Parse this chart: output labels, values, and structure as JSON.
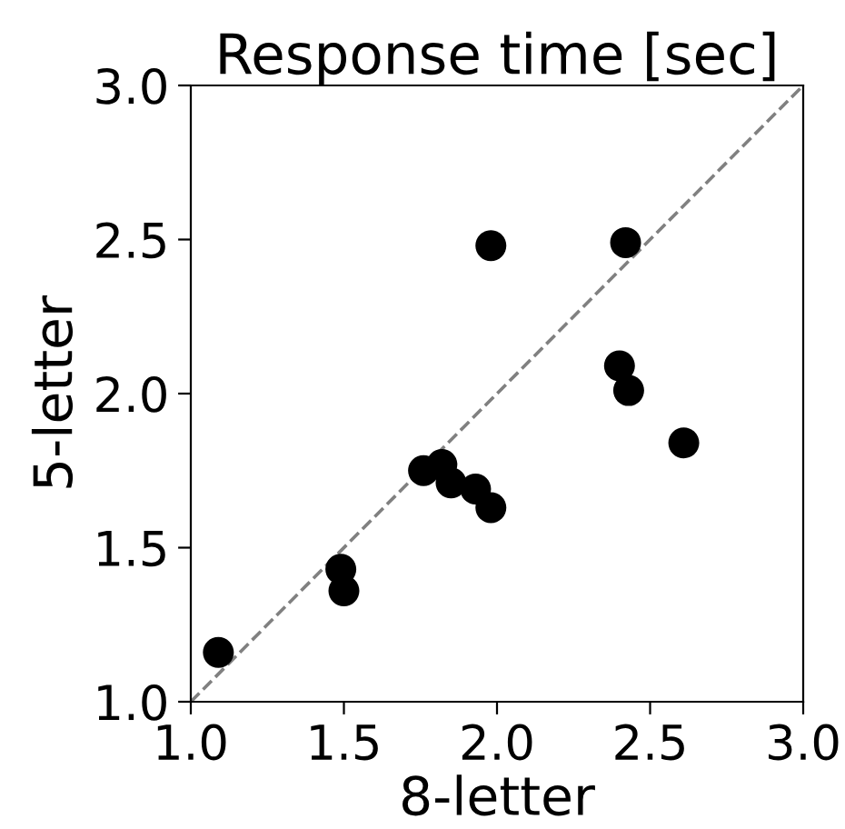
{
  "chart_data": {
    "type": "scatter",
    "title": "Response time [sec]",
    "xlabel": "8-letter",
    "ylabel": "5-letter",
    "xlim": [
      1.0,
      3.0
    ],
    "ylim": [
      1.0,
      3.0
    ],
    "xticks": [
      {
        "value": 1.0,
        "label": "1.0"
      },
      {
        "value": 1.5,
        "label": "1.5"
      },
      {
        "value": 2.0,
        "label": "2.0"
      },
      {
        "value": 2.5,
        "label": "2.5"
      },
      {
        "value": 3.0,
        "label": "3.0"
      }
    ],
    "yticks": [
      {
        "value": 1.0,
        "label": "1.0"
      },
      {
        "value": 1.5,
        "label": "1.5"
      },
      {
        "value": 2.0,
        "label": "2.0"
      },
      {
        "value": 2.5,
        "label": "2.5"
      },
      {
        "value": 3.0,
        "label": "3.0"
      }
    ],
    "grid": false,
    "series": [
      {
        "marker": "circle",
        "color": "#000000",
        "x": [
          1.09,
          1.49,
          1.5,
          1.76,
          1.82,
          1.85,
          1.93,
          1.98,
          1.98,
          2.42,
          2.4,
          2.43,
          2.61
        ],
        "values": [
          1.16,
          1.43,
          1.36,
          1.75,
          1.77,
          1.71,
          1.69,
          1.63,
          2.48,
          2.49,
          2.09,
          2.01,
          1.84
        ]
      },
      {
        "type": "line",
        "color": "#808080",
        "line_style": "dashed",
        "marker": "none",
        "x": [
          1.0,
          3.0
        ],
        "values": [
          1.0,
          3.0
        ]
      }
    ]
  }
}
